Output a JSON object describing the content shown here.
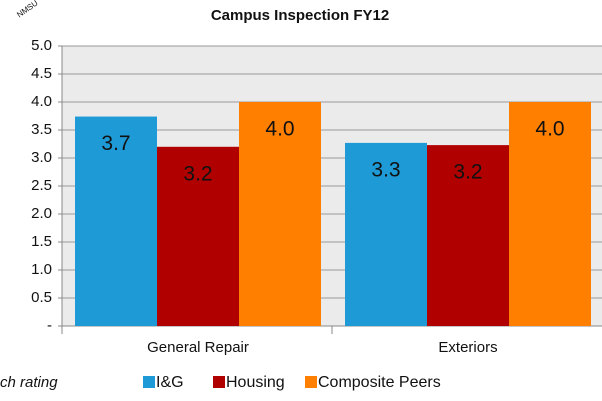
{
  "chart_data": {
    "type": "bar",
    "title": "Campus Inspection FY12",
    "annotations": [
      "NMSU",
      "ch rating"
    ],
    "categories": [
      "General Repair",
      "Exteriors"
    ],
    "series": [
      {
        "name": "I&G",
        "color": "#1e9ad6",
        "values": [
          3.74,
          3.27
        ],
        "value_labels": [
          "3.7",
          "3.3"
        ]
      },
      {
        "name": "Housing",
        "color": "#b00000",
        "values": [
          3.2,
          3.23
        ],
        "value_labels": [
          "3.2",
          "3.2"
        ]
      },
      {
        "name": "Composite Peers",
        "color": "#ff7f00",
        "values": [
          4.0,
          4.0
        ],
        "value_labels": [
          "4.0",
          "4.0"
        ]
      }
    ],
    "ylim": [
      0,
      5
    ],
    "yticks": [
      {
        "value": 0,
        "label": "-"
      },
      0.5,
      {
        "value": 1,
        "label": "1.0"
      },
      1.5,
      {
        "value": 2,
        "label": "2.0"
      },
      2.5,
      {
        "value": 3,
        "label": "3.0"
      },
      3.5,
      {
        "value": 4,
        "label": "4.0"
      },
      4.5,
      {
        "value": 5,
        "label": "5.0"
      }
    ],
    "grid": true,
    "legend": "bottom"
  }
}
